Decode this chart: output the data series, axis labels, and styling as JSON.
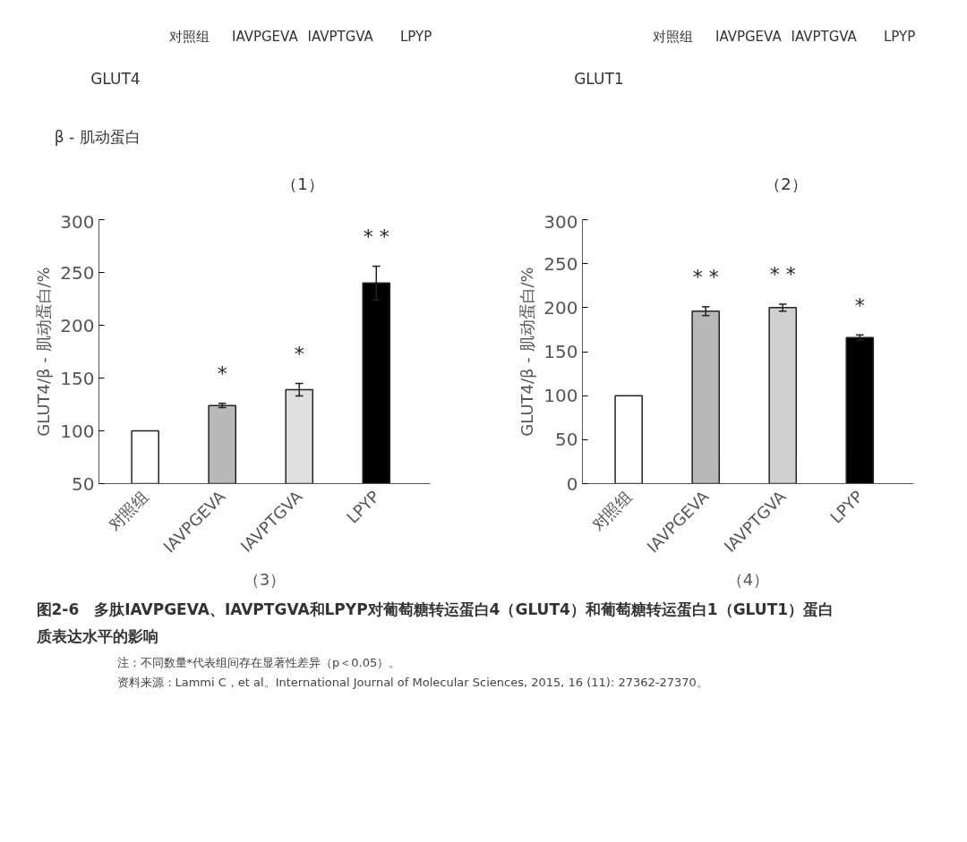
{
  "chart_data": [
    {
      "type": "other",
      "categories": [
        "对照组",
        "IAVPGEVA",
        "IAVPTGVA",
        "LPYP"
      ],
      "annotations": [
        "GLUT4",
        "β - 肌动蛋白"
      ],
      "xlabel": "（1）"
    },
    {
      "type": "other",
      "categories": [
        "对照组",
        "IAVPGEVA",
        "IAVPTGVA",
        "LPYP"
      ],
      "annotations": [
        "GLUT1"
      ],
      "xlabel": "（2）"
    },
    {
      "type": "bar",
      "categories": [
        "对照组",
        "IAVPGEVA",
        "IAVPTGVA",
        "LPYP"
      ],
      "values": [
        100,
        124,
        139,
        240
      ],
      "colors": [
        "#ffffff",
        "#b8b8b8",
        "#e0e0e0",
        "#000000"
      ],
      "errors": [
        null,
        2,
        6,
        16
      ],
      "ylim": [
        50,
        300
      ],
      "yticks": [
        50,
        100,
        150,
        200,
        250,
        300
      ],
      "ylabel": "GLUT4/β - 肌动蛋白/%",
      "xlabel": "（3）",
      "grid": false,
      "value_labels": [
        null,
        "*",
        "*",
        "* *"
      ]
    },
    {
      "type": "bar",
      "categories": [
        "对照组",
        "IAVPGEVA",
        "IAVPTGVA",
        "LPYP"
      ],
      "values": [
        100,
        196,
        200,
        166
      ],
      "colors": [
        "#ffffff",
        "#b8b8b8",
        "#d0d0d0",
        "#000000"
      ],
      "errors": [
        null,
        5,
        4,
        3
      ],
      "ylim": [
        0,
        300
      ],
      "yticks": [
        0,
        50,
        100,
        150,
        200,
        250,
        300
      ],
      "ylabel": "GLUT4/β - 肌动蛋白/%",
      "xlabel": "（4）",
      "grid": false,
      "value_labels": [
        null,
        "* *",
        "* *",
        "*"
      ]
    },
    {
      "type": "other",
      "title": "图2-6　多肽IAVPGEVA、IAVPTGVA和LPYP对葡萄糖转运蛋白4（GLUT4）和葡萄糖转运蛋白1（GLUT1）蛋白质表达水平的影响",
      "annotations": [
        "注：不同数量*代表组间存在显著性差异（p＜0.05）。",
        "资料来源：Lammi C，et al。International Journal of Molecular Sciences, 2015, 16 (11): 27362-27370。"
      ]
    }
  ]
}
